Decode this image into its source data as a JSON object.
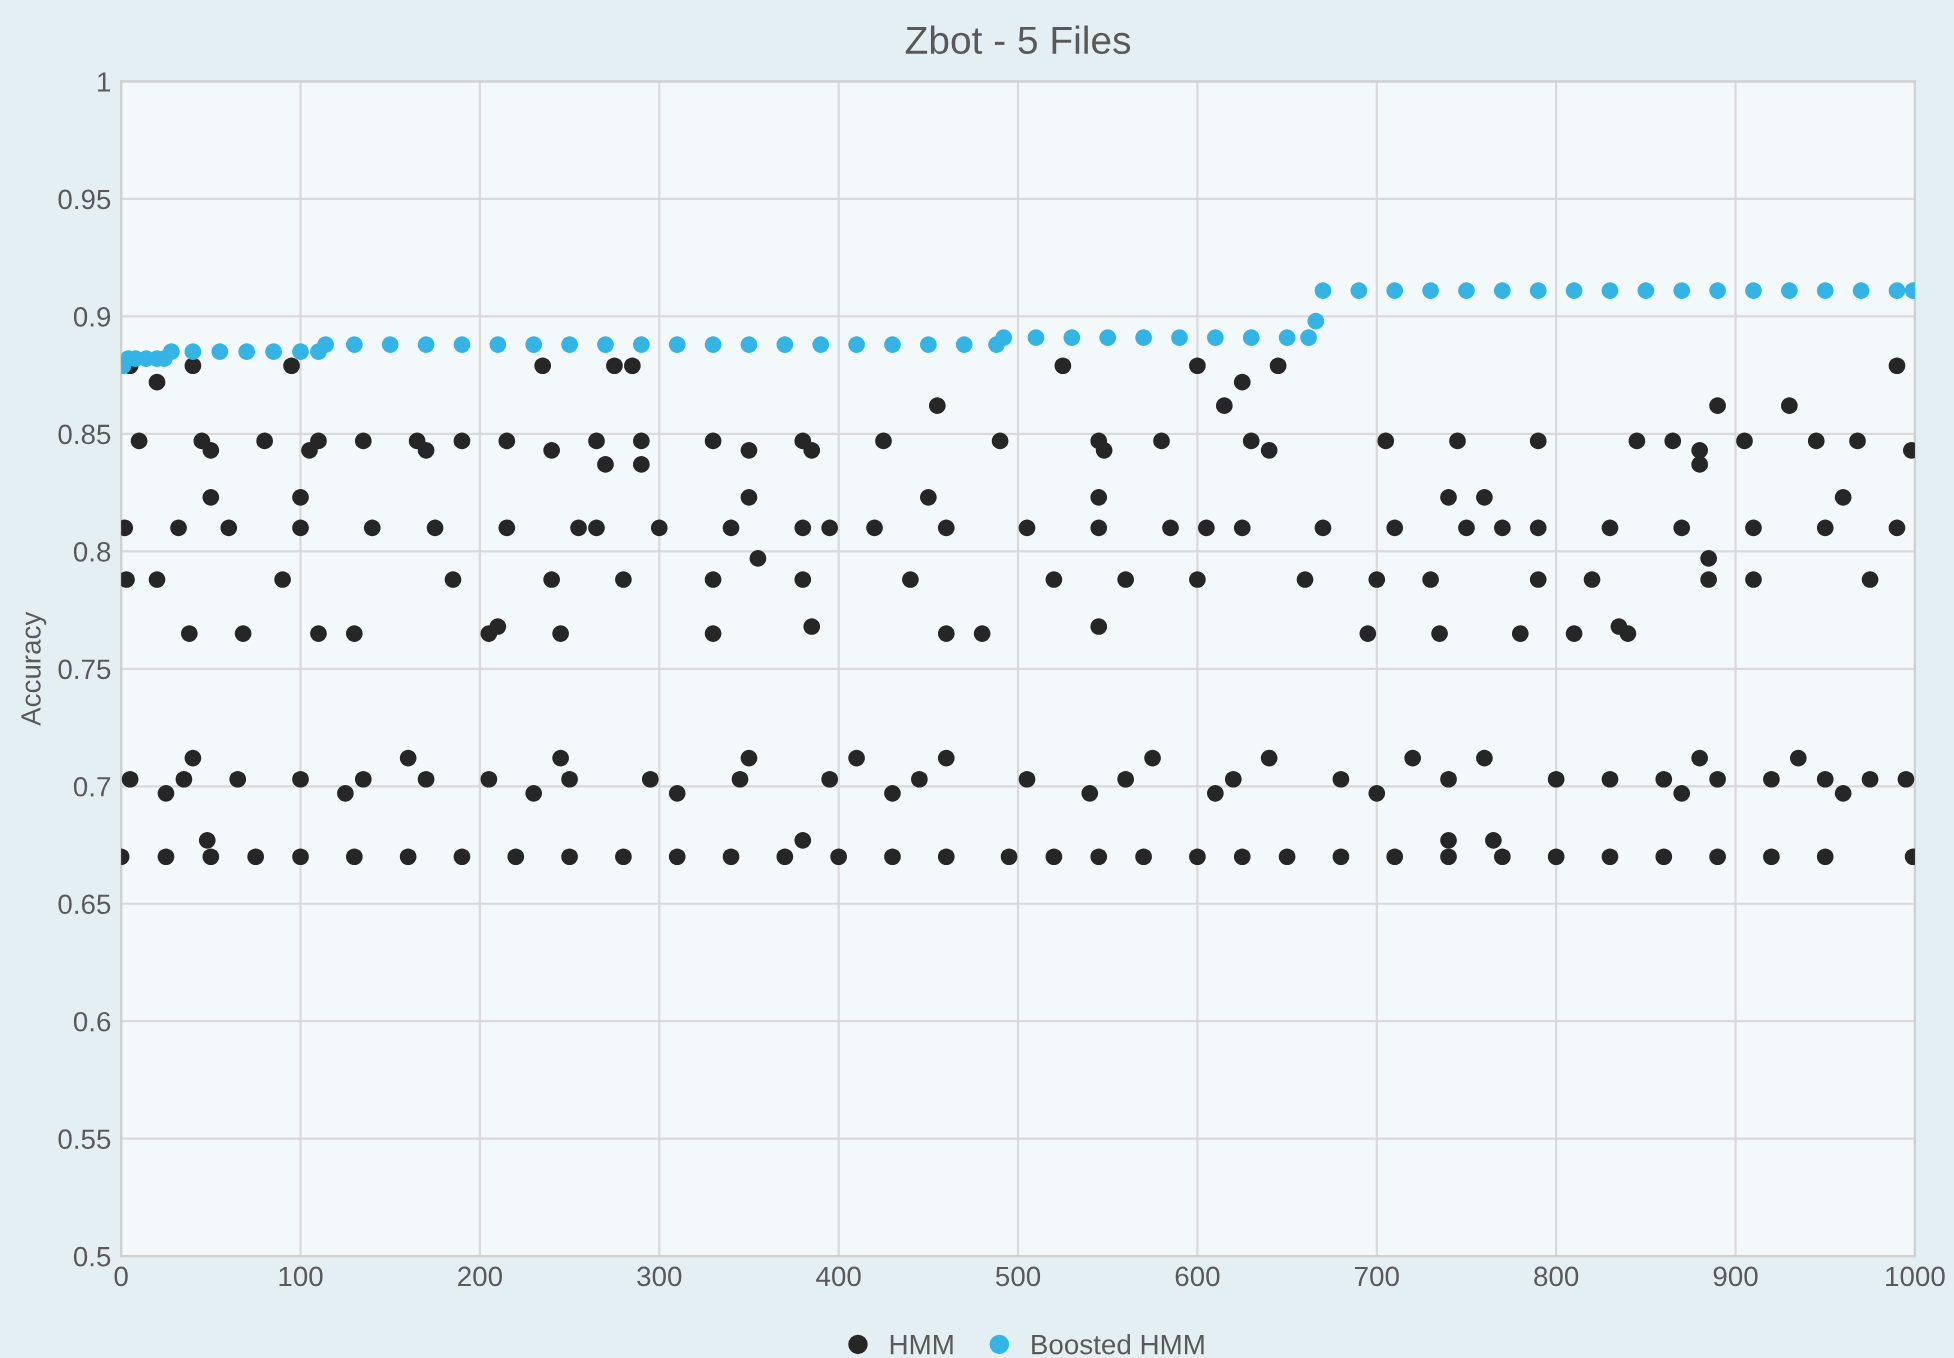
{
  "chart_data": {
    "type": "scatter",
    "title": "Zbot - 5 Files",
    "ylabel": "Accuracy",
    "xlim": [
      0,
      1000
    ],
    "xticks": [
      0,
      100,
      200,
      300,
      400,
      500,
      600,
      700,
      800,
      900,
      1000
    ],
    "ylim": [
      0.5,
      1
    ],
    "yticks": [
      0.5,
      0.55,
      0.6,
      0.65,
      0.7,
      0.75,
      0.8,
      0.85,
      0.9,
      0.95,
      1
    ],
    "grid": true,
    "legend": "bottom",
    "marker": "circle",
    "series": [
      {
        "name": "HMM",
        "color": "#262626",
        "x": [
          0,
          25,
          50,
          75,
          100,
          130,
          160,
          190,
          220,
          250,
          280,
          310,
          340,
          370,
          400,
          430,
          460,
          495,
          520,
          545,
          570,
          600,
          625,
          650,
          680,
          710,
          740,
          770,
          800,
          830,
          860,
          890,
          920,
          950,
          999,
          5,
          35,
          65,
          100,
          135,
          170,
          205,
          250,
          295,
          345,
          395,
          445,
          505,
          560,
          620,
          680,
          740,
          800,
          830,
          860,
          890,
          920,
          950,
          975,
          995,
          25,
          125,
          230,
          310,
          430,
          540,
          610,
          700,
          870,
          960,
          40,
          160,
          245,
          350,
          410,
          460,
          575,
          640,
          720,
          760,
          880,
          935,
          48,
          380,
          740,
          765,
          3,
          20,
          90,
          185,
          240,
          280,
          330,
          380,
          440,
          520,
          560,
          600,
          660,
          700,
          730,
          790,
          820,
          885,
          910,
          975,
          2,
          32,
          60,
          100,
          140,
          175,
          215,
          255,
          300,
          340,
          380,
          420,
          460,
          505,
          545,
          585,
          625,
          670,
          710,
          750,
          790,
          830,
          870,
          910,
          950,
          990,
          265,
          395,
          605,
          770,
          10,
          45,
          80,
          110,
          135,
          165,
          215,
          265,
          330,
          380,
          425,
          490,
          545,
          580,
          630,
          705,
          745,
          790,
          845,
          865,
          905,
          945,
          968,
          190,
          290,
          50,
          105,
          170,
          240,
          350,
          385,
          548,
          640,
          880,
          998,
          38,
          68,
          110,
          130,
          205,
          245,
          330,
          460,
          480,
          695,
          735,
          780,
          810,
          840,
          5,
          40,
          95,
          235,
          275,
          285,
          525,
          600,
          645,
          990,
          50,
          100,
          350,
          450,
          545,
          740,
          760,
          960,
          455,
          615,
          890,
          930,
          20,
          625,
          270,
          290,
          880,
          355,
          885,
          210,
          385,
          545,
          835
        ],
        "values": [
          0.67,
          0.67,
          0.67,
          0.67,
          0.67,
          0.67,
          0.67,
          0.67,
          0.67,
          0.67,
          0.67,
          0.67,
          0.67,
          0.67,
          0.67,
          0.67,
          0.67,
          0.67,
          0.67,
          0.67,
          0.67,
          0.67,
          0.67,
          0.67,
          0.67,
          0.67,
          0.67,
          0.67,
          0.67,
          0.67,
          0.67,
          0.67,
          0.67,
          0.67,
          0.67,
          0.703,
          0.703,
          0.703,
          0.703,
          0.703,
          0.703,
          0.703,
          0.703,
          0.703,
          0.703,
          0.703,
          0.703,
          0.703,
          0.703,
          0.703,
          0.703,
          0.703,
          0.703,
          0.703,
          0.703,
          0.703,
          0.703,
          0.703,
          0.703,
          0.703,
          0.697,
          0.697,
          0.697,
          0.697,
          0.697,
          0.697,
          0.697,
          0.697,
          0.697,
          0.697,
          0.712,
          0.712,
          0.712,
          0.712,
          0.712,
          0.712,
          0.712,
          0.712,
          0.712,
          0.712,
          0.712,
          0.712,
          0.677,
          0.677,
          0.677,
          0.677,
          0.788,
          0.788,
          0.788,
          0.788,
          0.788,
          0.788,
          0.788,
          0.788,
          0.788,
          0.788,
          0.788,
          0.788,
          0.788,
          0.788,
          0.788,
          0.788,
          0.788,
          0.788,
          0.788,
          0.788,
          0.81,
          0.81,
          0.81,
          0.81,
          0.81,
          0.81,
          0.81,
          0.81,
          0.81,
          0.81,
          0.81,
          0.81,
          0.81,
          0.81,
          0.81,
          0.81,
          0.81,
          0.81,
          0.81,
          0.81,
          0.81,
          0.81,
          0.81,
          0.81,
          0.81,
          0.81,
          0.81,
          0.81,
          0.81,
          0.81,
          0.847,
          0.847,
          0.847,
          0.847,
          0.847,
          0.847,
          0.847,
          0.847,
          0.847,
          0.847,
          0.847,
          0.847,
          0.847,
          0.847,
          0.847,
          0.847,
          0.847,
          0.847,
          0.847,
          0.847,
          0.847,
          0.847,
          0.847,
          0.847,
          0.847,
          0.843,
          0.843,
          0.843,
          0.843,
          0.843,
          0.843,
          0.843,
          0.843,
          0.843,
          0.843,
          0.765,
          0.765,
          0.765,
          0.765,
          0.765,
          0.765,
          0.765,
          0.765,
          0.765,
          0.765,
          0.765,
          0.765,
          0.765,
          0.765,
          0.879,
          0.879,
          0.879,
          0.879,
          0.879,
          0.879,
          0.879,
          0.879,
          0.879,
          0.879,
          0.823,
          0.823,
          0.823,
          0.823,
          0.823,
          0.823,
          0.823,
          0.823,
          0.862,
          0.862,
          0.862,
          0.862,
          0.872,
          0.872,
          0.837,
          0.837,
          0.837,
          0.797,
          0.797,
          0.768,
          0.768,
          0.768,
          0.768
        ]
      },
      {
        "name": "Boosted HMM",
        "color": "#33b4e4",
        "x": [
          1,
          4,
          8,
          14,
          20,
          24,
          28,
          40,
          55,
          70,
          85,
          100,
          110,
          114,
          130,
          150,
          170,
          190,
          210,
          230,
          250,
          270,
          290,
          310,
          330,
          350,
          370,
          390,
          410,
          430,
          450,
          470,
          488,
          492,
          510,
          530,
          550,
          570,
          590,
          610,
          630,
          650,
          662,
          666,
          670,
          690,
          710,
          730,
          750,
          770,
          790,
          810,
          830,
          850,
          870,
          890,
          910,
          930,
          950,
          970,
          990,
          999
        ],
        "values": [
          0.879,
          0.882,
          0.882,
          0.882,
          0.882,
          0.882,
          0.885,
          0.885,
          0.885,
          0.885,
          0.885,
          0.885,
          0.885,
          0.888,
          0.888,
          0.888,
          0.888,
          0.888,
          0.888,
          0.888,
          0.888,
          0.888,
          0.888,
          0.888,
          0.888,
          0.888,
          0.888,
          0.888,
          0.888,
          0.888,
          0.888,
          0.888,
          0.888,
          0.891,
          0.891,
          0.891,
          0.891,
          0.891,
          0.891,
          0.891,
          0.891,
          0.891,
          0.891,
          0.898,
          0.911,
          0.911,
          0.911,
          0.911,
          0.911,
          0.911,
          0.911,
          0.911,
          0.911,
          0.911,
          0.911,
          0.911,
          0.911,
          0.911,
          0.911,
          0.911,
          0.911,
          0.911
        ]
      }
    ]
  }
}
